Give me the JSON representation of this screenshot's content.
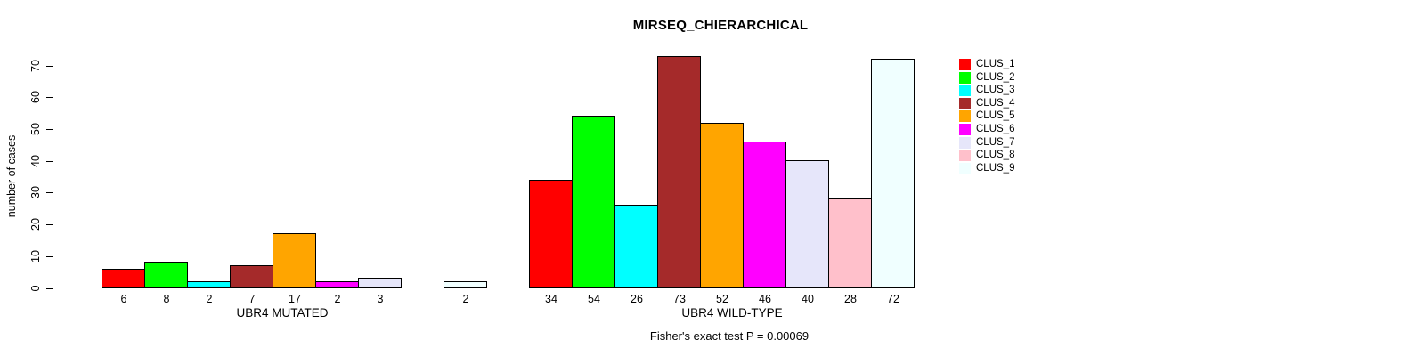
{
  "page": {
    "background_color": "#FFFFFF",
    "text_color": "#000000"
  },
  "chart_data": {
    "type": "bar",
    "title": "MIRSEQ_CHIERARCHICAL",
    "ylabel": "number of cases",
    "xlabel_group1": "UBR4 MUTATED",
    "xlabel_group2": "UBR4 WILD-TYPE",
    "ylim": [
      0,
      70
    ],
    "yticks": [
      0,
      10,
      20,
      30,
      40,
      50,
      60,
      70
    ],
    "grid": false,
    "legend_position": "right",
    "categories": [
      "CLUS_1",
      "CLUS_2",
      "CLUS_3",
      "CLUS_4",
      "CLUS_5",
      "CLUS_6",
      "CLUS_7",
      "CLUS_8",
      "CLUS_9"
    ],
    "colors": [
      "#FF0000",
      "#00FF00",
      "#00FFFF",
      "#A52A2A",
      "#FFA500",
      "#FF00FF",
      "#E6E6FA",
      "#FFC0CB",
      "#F0FFFF"
    ],
    "series": [
      {
        "name": "UBR4 MUTATED",
        "values": [
          6,
          8,
          2,
          7,
          17,
          2,
          3,
          0,
          2
        ]
      },
      {
        "name": "UBR4 WILD-TYPE",
        "values": [
          34,
          54,
          26,
          73,
          52,
          46,
          40,
          28,
          72
        ]
      }
    ],
    "bar_value_labels_group1": [
      "6",
      "8",
      "2",
      "7",
      "17",
      "2",
      "3",
      "",
      "2"
    ],
    "bar_value_labels_group2": [
      "34",
      "54",
      "26",
      "73",
      "52",
      "46",
      "40",
      "28",
      "72"
    ],
    "annotation": "Fisher's exact test P = 0.00069",
    "bar_border_color": "#000000"
  },
  "legend": {
    "items": [
      {
        "label": "CLUS_1",
        "color": "#FF0000"
      },
      {
        "label": "CLUS_2",
        "color": "#00FF00"
      },
      {
        "label": "CLUS_3",
        "color": "#00FFFF"
      },
      {
        "label": "CLUS_4",
        "color": "#A52A2A"
      },
      {
        "label": "CLUS_5",
        "color": "#FFA500"
      },
      {
        "label": "CLUS_6",
        "color": "#FF00FF"
      },
      {
        "label": "CLUS_7",
        "color": "#E6E6FA"
      },
      {
        "label": "CLUS_8",
        "color": "#FFC0CB"
      },
      {
        "label": "CLUS_9",
        "color": "#F0FFFF"
      }
    ]
  }
}
